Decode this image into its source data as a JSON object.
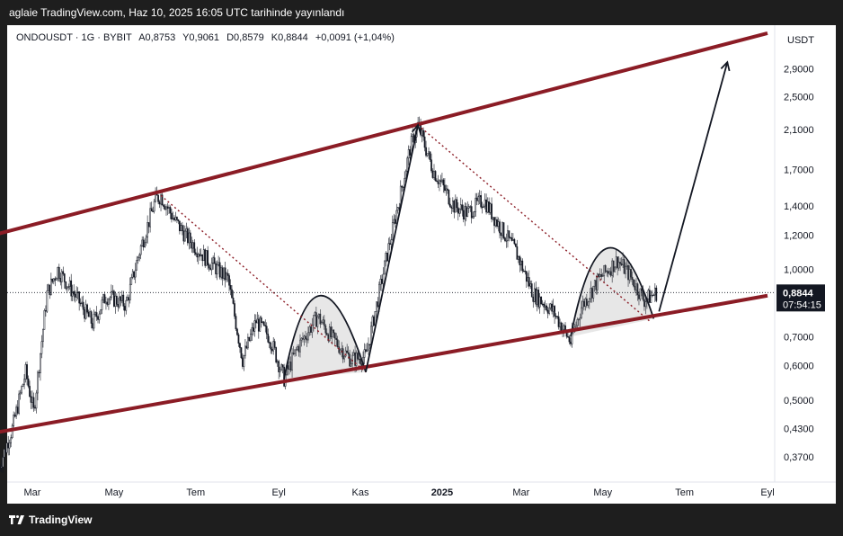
{
  "header": {
    "publish_text": "aglaie TradingView.com, Haz 10, 2025 16:05 UTC tarihinde yayınlandı"
  },
  "legend": {
    "symbol": "ONDOUSDT · 1G · BYBIT",
    "open": "A0,8753",
    "high": "Y0,9061",
    "low": "D0,8579",
    "close": "K0,8844",
    "change": "+0,0091 (+1,04%)"
  },
  "footer": {
    "brand": "TradingView"
  },
  "colors": {
    "channel": "#8b1c25",
    "candle": "#131722",
    "arrow": "#131722",
    "dotted": "#8b1c25",
    "price_tag": "#131722",
    "grid": "#ffffff"
  },
  "chart_data": {
    "type": "candlestick",
    "symbol": "ONDOUSDT",
    "interval": "1G",
    "exchange": "BYBIT",
    "scale": "log",
    "currency": "USDT",
    "y_ticks": [
      "2,9000",
      "2,5000",
      "2,1000",
      "1,7000",
      "1,4000",
      "1,2000",
      "1,0000",
      "0,7000",
      "0,6000",
      "0,5000",
      "0,4300",
      "0,3700"
    ],
    "y_tick_values": [
      2.9,
      2.5,
      2.1,
      1.7,
      1.4,
      1.2,
      1.0,
      0.7,
      0.6,
      0.5,
      0.43,
      0.37
    ],
    "x_ticks": [
      "Mar",
      "May",
      "Tem",
      "Eyl",
      "Kas",
      "2025",
      "Mar",
      "May",
      "Tem",
      "Eyl"
    ],
    "x_tick_dates": [
      "2024-03-01",
      "2024-05-01",
      "2024-07-01",
      "2024-09-01",
      "2024-11-01",
      "2025-01-01",
      "2025-03-01",
      "2025-05-01",
      "2025-07-01",
      "2025-09-01"
    ],
    "last_price": "0,8844",
    "countdown": "07:54:15",
    "price_path": [
      [
        "2024-02-05",
        0.35
      ],
      [
        "2024-02-15",
        0.43
      ],
      [
        "2024-02-25",
        0.58
      ],
      [
        "2024-03-02",
        0.47
      ],
      [
        "2024-03-12",
        0.88
      ],
      [
        "2024-03-20",
        1.0
      ],
      [
        "2024-04-01",
        0.88
      ],
      [
        "2024-04-15",
        0.75
      ],
      [
        "2024-04-25",
        0.87
      ],
      [
        "2024-05-10",
        0.83
      ],
      [
        "2024-05-20",
        1.1
      ],
      [
        "2024-06-01",
        1.45
      ],
      [
        "2024-06-05",
        1.48
      ],
      [
        "2024-06-15",
        1.3
      ],
      [
        "2024-06-25",
        1.18
      ],
      [
        "2024-07-10",
        1.05
      ],
      [
        "2024-07-25",
        0.95
      ],
      [
        "2024-08-05",
        0.62
      ],
      [
        "2024-08-15",
        0.76
      ],
      [
        "2024-08-25",
        0.7
      ],
      [
        "2024-09-05",
        0.56
      ],
      [
        "2024-09-15",
        0.66
      ],
      [
        "2024-09-30",
        0.78
      ],
      [
        "2024-10-10",
        0.7
      ],
      [
        "2024-10-25",
        0.62
      ],
      [
        "2024-11-05",
        0.63
      ],
      [
        "2024-11-20",
        1.05
      ],
      [
        "2024-12-01",
        1.5
      ],
      [
        "2024-12-08",
        1.9
      ],
      [
        "2024-12-14",
        2.15
      ],
      [
        "2024-12-25",
        1.7
      ],
      [
        "2025-01-10",
        1.4
      ],
      [
        "2025-01-20",
        1.35
      ],
      [
        "2025-02-01",
        1.45
      ],
      [
        "2025-02-10",
        1.3
      ],
      [
        "2025-02-25",
        1.1
      ],
      [
        "2025-03-10",
        0.88
      ],
      [
        "2025-03-25",
        0.8
      ],
      [
        "2025-04-07",
        0.68
      ],
      [
        "2025-04-15",
        0.82
      ],
      [
        "2025-04-28",
        0.95
      ],
      [
        "2025-05-12",
        1.05
      ],
      [
        "2025-05-20",
        0.98
      ],
      [
        "2025-06-01",
        0.85
      ],
      [
        "2025-06-10",
        0.8844
      ]
    ],
    "annotations": {
      "channel_upper": [
        [
          "2024-02-01",
          1.2
        ],
        [
          "2025-09-01",
          3.5
        ]
      ],
      "channel_lower": [
        [
          "2024-02-01",
          0.42
        ],
        [
          "2025-09-01",
          0.87
        ]
      ],
      "arrows": [
        [
          [
            "2024-11-05",
            0.58
          ],
          [
            "2024-12-14",
            2.15
          ]
        ],
        [
          [
            "2025-06-12",
            0.8
          ],
          [
            "2025-08-02",
            3.0
          ]
        ]
      ],
      "dotted": [
        [
          [
            "2024-06-05",
            1.48
          ],
          [
            "2024-11-05",
            0.58
          ]
        ],
        [
          [
            "2024-12-14",
            2.15
          ],
          [
            "2025-06-05",
            0.76
          ]
        ]
      ],
      "arcs": [
        [
          [
            "2024-09-05",
            0.56
          ],
          [
            "2024-10-02",
            0.87
          ],
          [
            "2024-11-05",
            0.58
          ]
        ],
        [
          [
            "2025-04-07",
            0.7
          ],
          [
            "2025-05-05",
            1.12
          ],
          [
            "2025-06-08",
            0.77
          ]
        ]
      ]
    }
  }
}
